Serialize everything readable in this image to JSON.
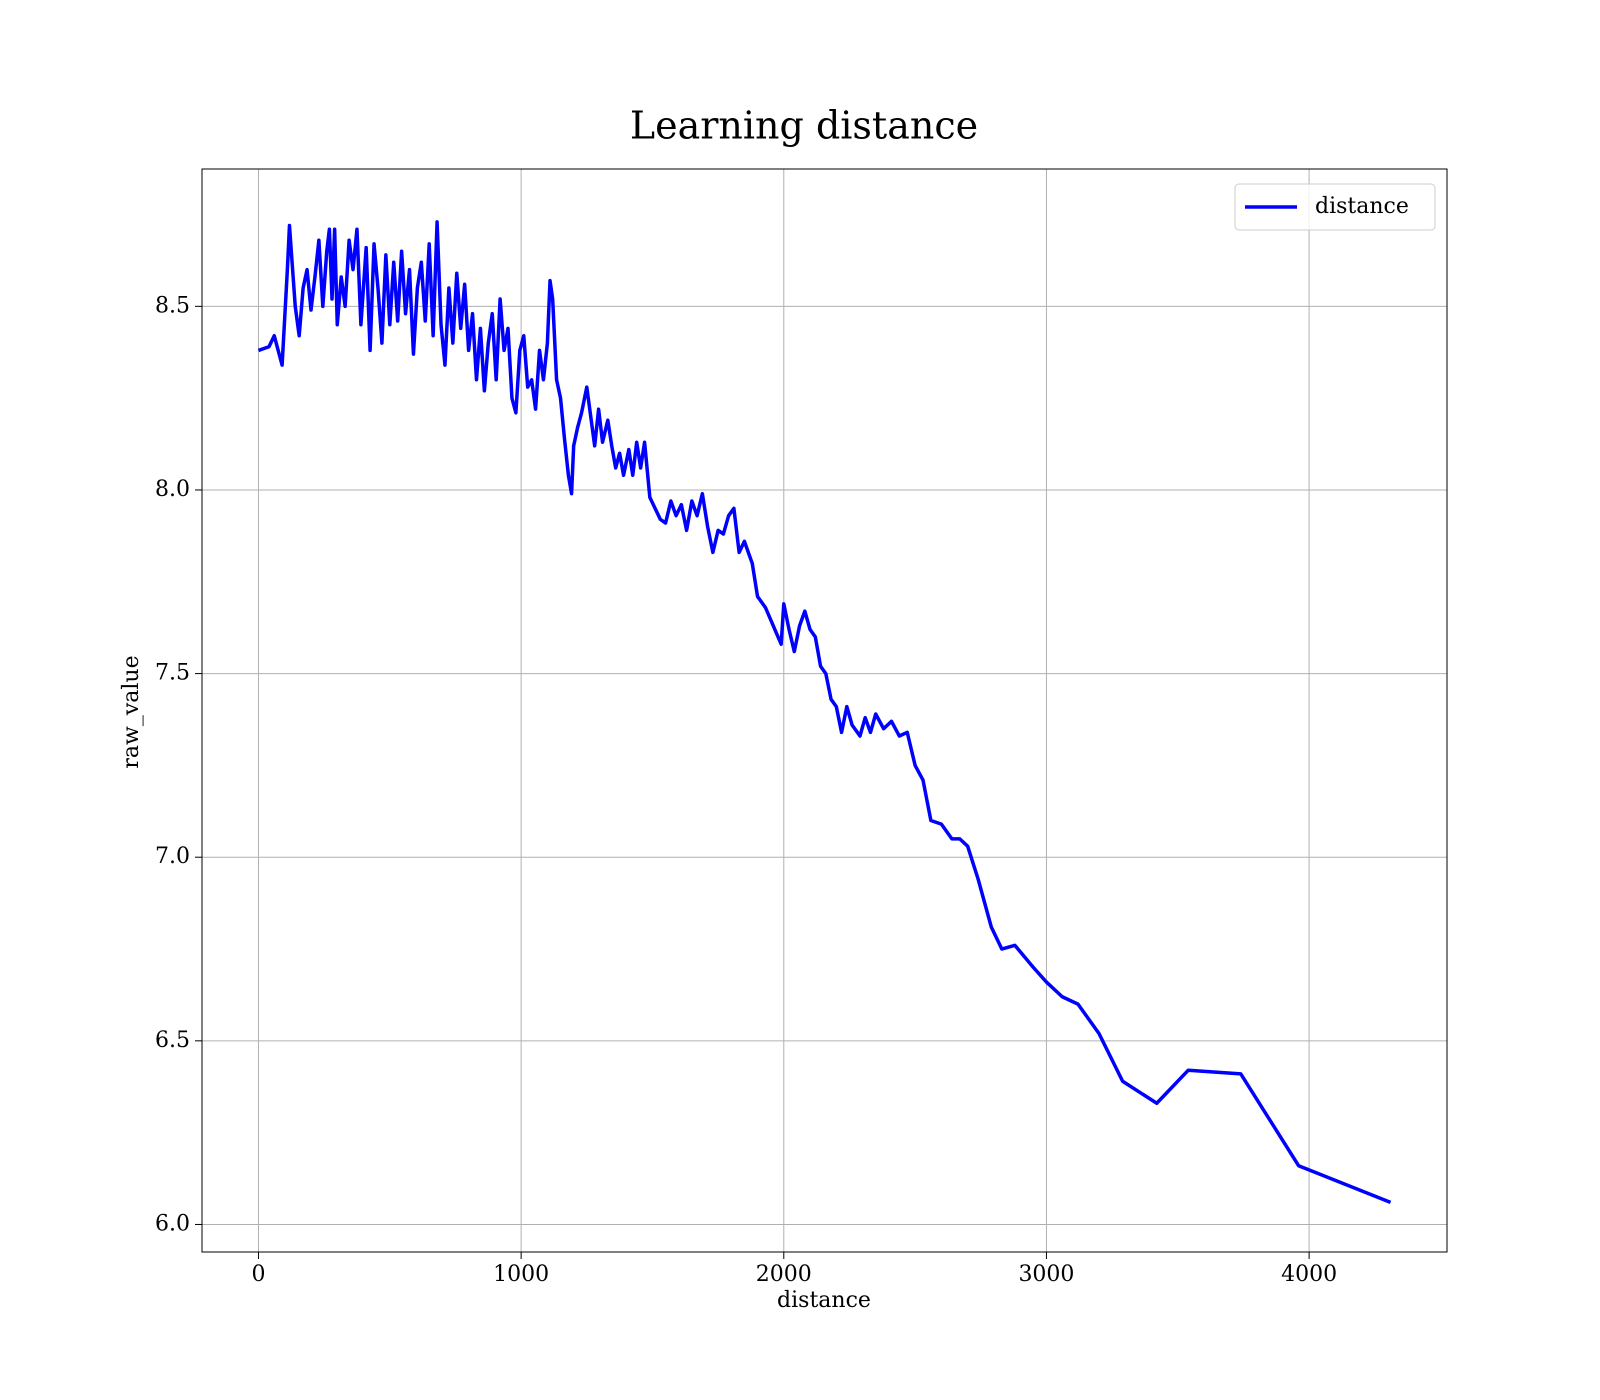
{
  "chart_data": {
    "type": "line",
    "title": "Learning distance",
    "x_label": "distance",
    "y_label": "raw_value",
    "x": [
      0,
      40,
      60,
      90,
      110,
      118,
      125,
      140,
      155,
      170,
      185,
      200,
      215,
      230,
      245,
      260,
      270,
      280,
      290,
      300,
      315,
      330,
      345,
      360,
      375,
      390,
      410,
      425,
      440,
      455,
      470,
      485,
      500,
      515,
      530,
      545,
      560,
      575,
      590,
      605,
      620,
      635,
      650,
      665,
      680,
      695,
      710,
      725,
      740,
      755,
      770,
      785,
      800,
      815,
      830,
      845,
      860,
      875,
      890,
      905,
      920,
      935,
      950,
      965,
      980,
      995,
      1010,
      1025,
      1040,
      1055,
      1070,
      1085,
      1100,
      1110,
      1120,
      1135,
      1150,
      1165,
      1180,
      1192,
      1200,
      1215,
      1230,
      1250,
      1265,
      1280,
      1295,
      1310,
      1330,
      1345,
      1360,
      1375,
      1390,
      1410,
      1425,
      1440,
      1455,
      1470,
      1490,
      1510,
      1530,
      1550,
      1570,
      1590,
      1610,
      1630,
      1650,
      1670,
      1690,
      1710,
      1730,
      1750,
      1770,
      1790,
      1810,
      1830,
      1850,
      1880,
      1900,
      1930,
      1960,
      1990,
      2000,
      2020,
      2040,
      2060,
      2080,
      2100,
      2120,
      2140,
      2160,
      2180,
      2200,
      2220,
      2240,
      2260,
      2290,
      2310,
      2330,
      2350,
      2380,
      2410,
      2440,
      2470,
      2500,
      2530,
      2560,
      2600,
      2640,
      2670,
      2700,
      2740,
      2790,
      2830,
      2880,
      2950,
      3000,
      3060,
      3120,
      3200,
      3290,
      3420,
      3540,
      3740,
      3960,
      4310
    ],
    "series": [
      {
        "name": "distance",
        "color": "#0000ff",
        "values": [
          8.38,
          8.39,
          8.42,
          8.34,
          8.6,
          8.72,
          8.65,
          8.5,
          8.42,
          8.55,
          8.6,
          8.49,
          8.58,
          8.68,
          8.5,
          8.65,
          8.71,
          8.52,
          8.71,
          8.45,
          8.58,
          8.5,
          8.68,
          8.6,
          8.71,
          8.45,
          8.66,
          8.38,
          8.67,
          8.55,
          8.4,
          8.64,
          8.45,
          8.62,
          8.46,
          8.65,
          8.48,
          8.6,
          8.37,
          8.55,
          8.62,
          8.46,
          8.67,
          8.42,
          8.73,
          8.45,
          8.34,
          8.55,
          8.4,
          8.59,
          8.44,
          8.56,
          8.38,
          8.48,
          8.3,
          8.44,
          8.27,
          8.4,
          8.48,
          8.3,
          8.52,
          8.38,
          8.44,
          8.25,
          8.21,
          8.38,
          8.42,
          8.28,
          8.3,
          8.22,
          8.38,
          8.3,
          8.4,
          8.57,
          8.52,
          8.3,
          8.25,
          8.14,
          8.04,
          7.99,
          8.12,
          8.17,
          8.21,
          8.28,
          8.2,
          8.12,
          8.22,
          8.13,
          8.19,
          8.12,
          8.06,
          8.1,
          8.04,
          8.11,
          8.04,
          8.13,
          8.06,
          8.13,
          7.98,
          7.95,
          7.92,
          7.91,
          7.97,
          7.93,
          7.96,
          7.89,
          7.97,
          7.93,
          7.99,
          7.9,
          7.83,
          7.89,
          7.88,
          7.93,
          7.95,
          7.83,
          7.86,
          7.8,
          7.71,
          7.68,
          7.63,
          7.58,
          7.69,
          7.62,
          7.56,
          7.63,
          7.67,
          7.62,
          7.6,
          7.52,
          7.5,
          7.43,
          7.41,
          7.34,
          7.41,
          7.36,
          7.33,
          7.38,
          7.34,
          7.39,
          7.35,
          7.37,
          7.33,
          7.34,
          7.25,
          7.21,
          7.1,
          7.09,
          7.05,
          7.05,
          7.03,
          6.94,
          6.81,
          6.75,
          6.76,
          6.7,
          6.66,
          6.62,
          6.6,
          6.52,
          6.39,
          6.33,
          6.42,
          6.41,
          6.16,
          6.06
        ]
      }
    ],
    "xlim": [
      -215,
      4525
    ],
    "ylim": [
      5.925,
      8.874
    ],
    "xticks": [
      0,
      1000,
      2000,
      3000,
      4000
    ],
    "yticks": [
      {
        "value": 6,
        "label": "6.0"
      },
      6.5,
      {
        "value": 7,
        "label": "7.0"
      },
      7.5,
      {
        "value": 8,
        "label": "8.0"
      },
      8.5
    ],
    "grid": true,
    "legend": "upper right"
  }
}
